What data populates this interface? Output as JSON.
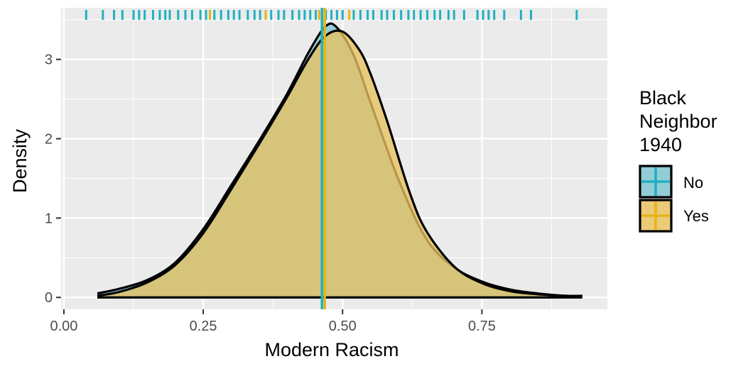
{
  "chart_data": {
    "type": "area",
    "xlabel": "Modern Racism",
    "ylabel": "Density",
    "xlim": [
      -0.005,
      0.975
    ],
    "ylim": [
      -0.15,
      3.65
    ],
    "x_ticks": [
      0.0,
      0.25,
      0.5,
      0.75
    ],
    "x_tick_labels": [
      "0.00",
      "0.25",
      "0.50",
      "0.75"
    ],
    "y_ticks": [
      0,
      1,
      2,
      3
    ],
    "y_tick_labels": [
      "0",
      "1",
      "2",
      "3"
    ],
    "grid": true,
    "legend": {
      "title_lines": [
        "Black",
        "Neighbor",
        "1940"
      ],
      "position": "right"
    },
    "series": [
      {
        "name": "No",
        "fill": "#7fc4cf",
        "line": "#1fb1c1",
        "mean": 0.463,
        "x": [
          0.06,
          0.1,
          0.15,
          0.2,
          0.25,
          0.3,
          0.35,
          0.4,
          0.44,
          0.47,
          0.49,
          0.52,
          0.55,
          0.6,
          0.65,
          0.7,
          0.75,
          0.8,
          0.85,
          0.9,
          0.93
        ],
        "y": [
          0.05,
          0.11,
          0.22,
          0.44,
          0.86,
          1.41,
          1.97,
          2.56,
          3.1,
          3.42,
          3.4,
          3.05,
          2.46,
          1.49,
          0.74,
          0.38,
          0.2,
          0.1,
          0.05,
          0.02,
          0.02
        ]
      },
      {
        "name": "Yes",
        "fill": "#e8c160",
        "line": "#e6b419",
        "mean": 0.468,
        "x": [
          0.06,
          0.1,
          0.15,
          0.2,
          0.25,
          0.3,
          0.35,
          0.4,
          0.44,
          0.47,
          0.5,
          0.53,
          0.55,
          0.58,
          0.62,
          0.65,
          0.7,
          0.75,
          0.8,
          0.85,
          0.9,
          0.93
        ],
        "y": [
          0.02,
          0.07,
          0.19,
          0.41,
          0.81,
          1.36,
          1.93,
          2.52,
          3.02,
          3.3,
          3.35,
          3.12,
          2.82,
          2.22,
          1.33,
          0.84,
          0.39,
          0.18,
          0.08,
          0.04,
          0.02,
          0.02
        ]
      }
    ],
    "rug": [
      {
        "x": 0.04,
        "series": "No"
      },
      {
        "x": 0.07,
        "series": "No"
      },
      {
        "x": 0.09,
        "series": "No"
      },
      {
        "x": 0.105,
        "series": "No"
      },
      {
        "x": 0.125,
        "series": "No"
      },
      {
        "x": 0.135,
        "series": "No"
      },
      {
        "x": 0.145,
        "series": "No"
      },
      {
        "x": 0.16,
        "series": "No"
      },
      {
        "x": 0.172,
        "series": "No"
      },
      {
        "x": 0.182,
        "series": "No"
      },
      {
        "x": 0.19,
        "series": "No"
      },
      {
        "x": 0.205,
        "series": "No"
      },
      {
        "x": 0.218,
        "series": "No"
      },
      {
        "x": 0.23,
        "series": "No"
      },
      {
        "x": 0.245,
        "series": "No"
      },
      {
        "x": 0.255,
        "series": "No"
      },
      {
        "x": 0.262,
        "series": "Yes"
      },
      {
        "x": 0.27,
        "series": "No"
      },
      {
        "x": 0.282,
        "series": "No"
      },
      {
        "x": 0.295,
        "series": "No"
      },
      {
        "x": 0.305,
        "series": "No"
      },
      {
        "x": 0.315,
        "series": "No"
      },
      {
        "x": 0.33,
        "series": "No"
      },
      {
        "x": 0.342,
        "series": "No"
      },
      {
        "x": 0.352,
        "series": "No"
      },
      {
        "x": 0.362,
        "series": "Yes"
      },
      {
        "x": 0.372,
        "series": "No"
      },
      {
        "x": 0.385,
        "series": "No"
      },
      {
        "x": 0.395,
        "series": "No"
      },
      {
        "x": 0.41,
        "series": "No"
      },
      {
        "x": 0.422,
        "series": "No"
      },
      {
        "x": 0.432,
        "series": "No"
      },
      {
        "x": 0.442,
        "series": "No"
      },
      {
        "x": 0.452,
        "series": "No"
      },
      {
        "x": 0.458,
        "series": "Yes"
      },
      {
        "x": 0.47,
        "series": "No"
      },
      {
        "x": 0.48,
        "series": "No"
      },
      {
        "x": 0.49,
        "series": "No"
      },
      {
        "x": 0.5,
        "series": "No"
      },
      {
        "x": 0.512,
        "series": "Yes"
      },
      {
        "x": 0.52,
        "series": "No"
      },
      {
        "x": 0.532,
        "series": "No"
      },
      {
        "x": 0.545,
        "series": "No"
      },
      {
        "x": 0.555,
        "series": "No"
      },
      {
        "x": 0.57,
        "series": "No"
      },
      {
        "x": 0.58,
        "series": "No"
      },
      {
        "x": 0.592,
        "series": "No"
      },
      {
        "x": 0.605,
        "series": "No"
      },
      {
        "x": 0.618,
        "series": "No"
      },
      {
        "x": 0.628,
        "series": "No"
      },
      {
        "x": 0.64,
        "series": "No"
      },
      {
        "x": 0.652,
        "series": "No"
      },
      {
        "x": 0.665,
        "series": "No"
      },
      {
        "x": 0.675,
        "series": "No"
      },
      {
        "x": 0.69,
        "series": "No"
      },
      {
        "x": 0.7,
        "series": "No"
      },
      {
        "x": 0.718,
        "series": "No"
      },
      {
        "x": 0.742,
        "series": "No"
      },
      {
        "x": 0.752,
        "series": "No"
      },
      {
        "x": 0.762,
        "series": "No"
      },
      {
        "x": 0.772,
        "series": "No"
      },
      {
        "x": 0.79,
        "series": "No"
      },
      {
        "x": 0.82,
        "series": "No"
      },
      {
        "x": 0.838,
        "series": "No"
      },
      {
        "x": 0.92,
        "series": "No"
      }
    ]
  }
}
